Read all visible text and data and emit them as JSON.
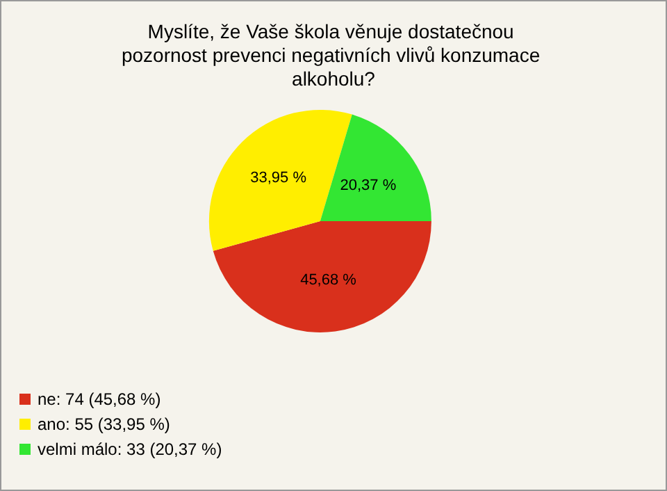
{
  "chart_data": {
    "type": "pie",
    "title": "Myslíte, že Vaše škola věnuje dostatečnou pozornost prevenci negativních vlivů konzumace alkoholu?",
    "categories": [
      "ne: 74 (45,68 %)",
      "ano: 55 (33,95 %)",
      "velmi málo: 33 (20,37 %)"
    ],
    "values": [
      45.68,
      33.95,
      20.37
    ],
    "value_labels": [
      "45,68 %",
      "33,95 %",
      "20,37 %"
    ],
    "colors": [
      "#d9301c",
      "#ffee00",
      "#33e633"
    ],
    "legend": "bottom left"
  }
}
